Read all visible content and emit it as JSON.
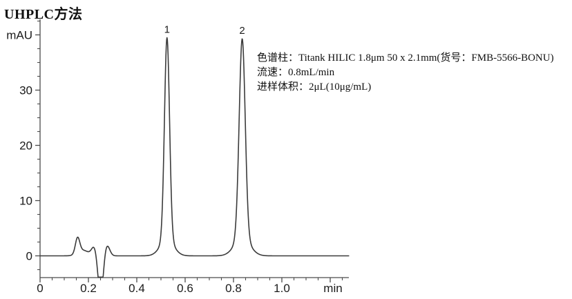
{
  "title": "UHPLC方法",
  "annotation": {
    "lines": [
      "色谱柱：Titank HILIC 1.8μm 50 x 2.1mm(货号：FMB-5566-BONU)",
      "流速：0.8mL/min",
      "进样体积：2μL(10μg/mL)"
    ]
  },
  "chart_data": {
    "type": "line",
    "title": "UHPLC方法",
    "xlabel": "min",
    "ylabel": "mAU",
    "background": "#ffffff",
    "line_color": "#3a3a3a",
    "axis_color": "#4a4a4a",
    "text_color": "#1a1a1a",
    "grid": false,
    "x_axis": {
      "min": 0,
      "max": 1.277,
      "major_ticks": [
        0,
        0.2,
        0.4,
        0.6,
        0.8,
        1.0,
        1.2
      ],
      "tick_labels": [
        "0",
        "0.2",
        "0.4",
        "0.6",
        "0.8",
        "1.0",
        "min"
      ],
      "minor_step": 0.05
    },
    "y_axis": {
      "min": -4,
      "max": 42.5,
      "major_ticks": [
        0,
        10,
        20,
        30,
        40
      ],
      "tick_labels": [
        "0",
        "10",
        "20",
        "30",
        "mAU"
      ],
      "minor_step": 2.5
    },
    "peaks": [
      {
        "label": "1",
        "retention_time_min": 0.525,
        "height_mau": 39.5
      },
      {
        "label": "2",
        "retention_time_min": 0.836,
        "height_mau": 39.3
      }
    ],
    "trace": {
      "baseline_mau": 0,
      "clip_min_mau": -3.85,
      "description": "solvent-front disturbance (small peak ~0.15 min of ~3.4 mAU, bump ~0.22 min, negative spike clipped at axis ~0.25 min, bump ~0.28 min) then peak 1 at 0.525 min (39.5 mAU) and peak 2 at 0.836 min (39.3 mAU)",
      "components": [
        {
          "amplitude_mau": 2.8,
          "center_min": 0.155,
          "sigma_min": 0.009
        },
        {
          "amplitude_mau": 1.0,
          "center_min": 0.178,
          "sigma_min": 0.022
        },
        {
          "amplitude_mau": 1.6,
          "center_min": 0.224,
          "sigma_min": 0.011
        },
        {
          "amplitude_mau": -7.5,
          "center_min": 0.2505,
          "sigma_min": 0.0105
        },
        {
          "amplitude_mau": 2.0,
          "center_min": 0.276,
          "sigma_min": 0.0115
        },
        {
          "amplitude_mau": 36.6,
          "center_min": 0.525,
          "sigma_min": 0.0105
        },
        {
          "amplitude_mau": 2.9,
          "center_min": 0.525,
          "sigma_min": 0.028
        },
        {
          "amplitude_mau": 36.1,
          "center_min": 0.836,
          "sigma_min": 0.0125
        },
        {
          "amplitude_mau": 3.2,
          "center_min": 0.836,
          "sigma_min": 0.032
        }
      ]
    }
  }
}
